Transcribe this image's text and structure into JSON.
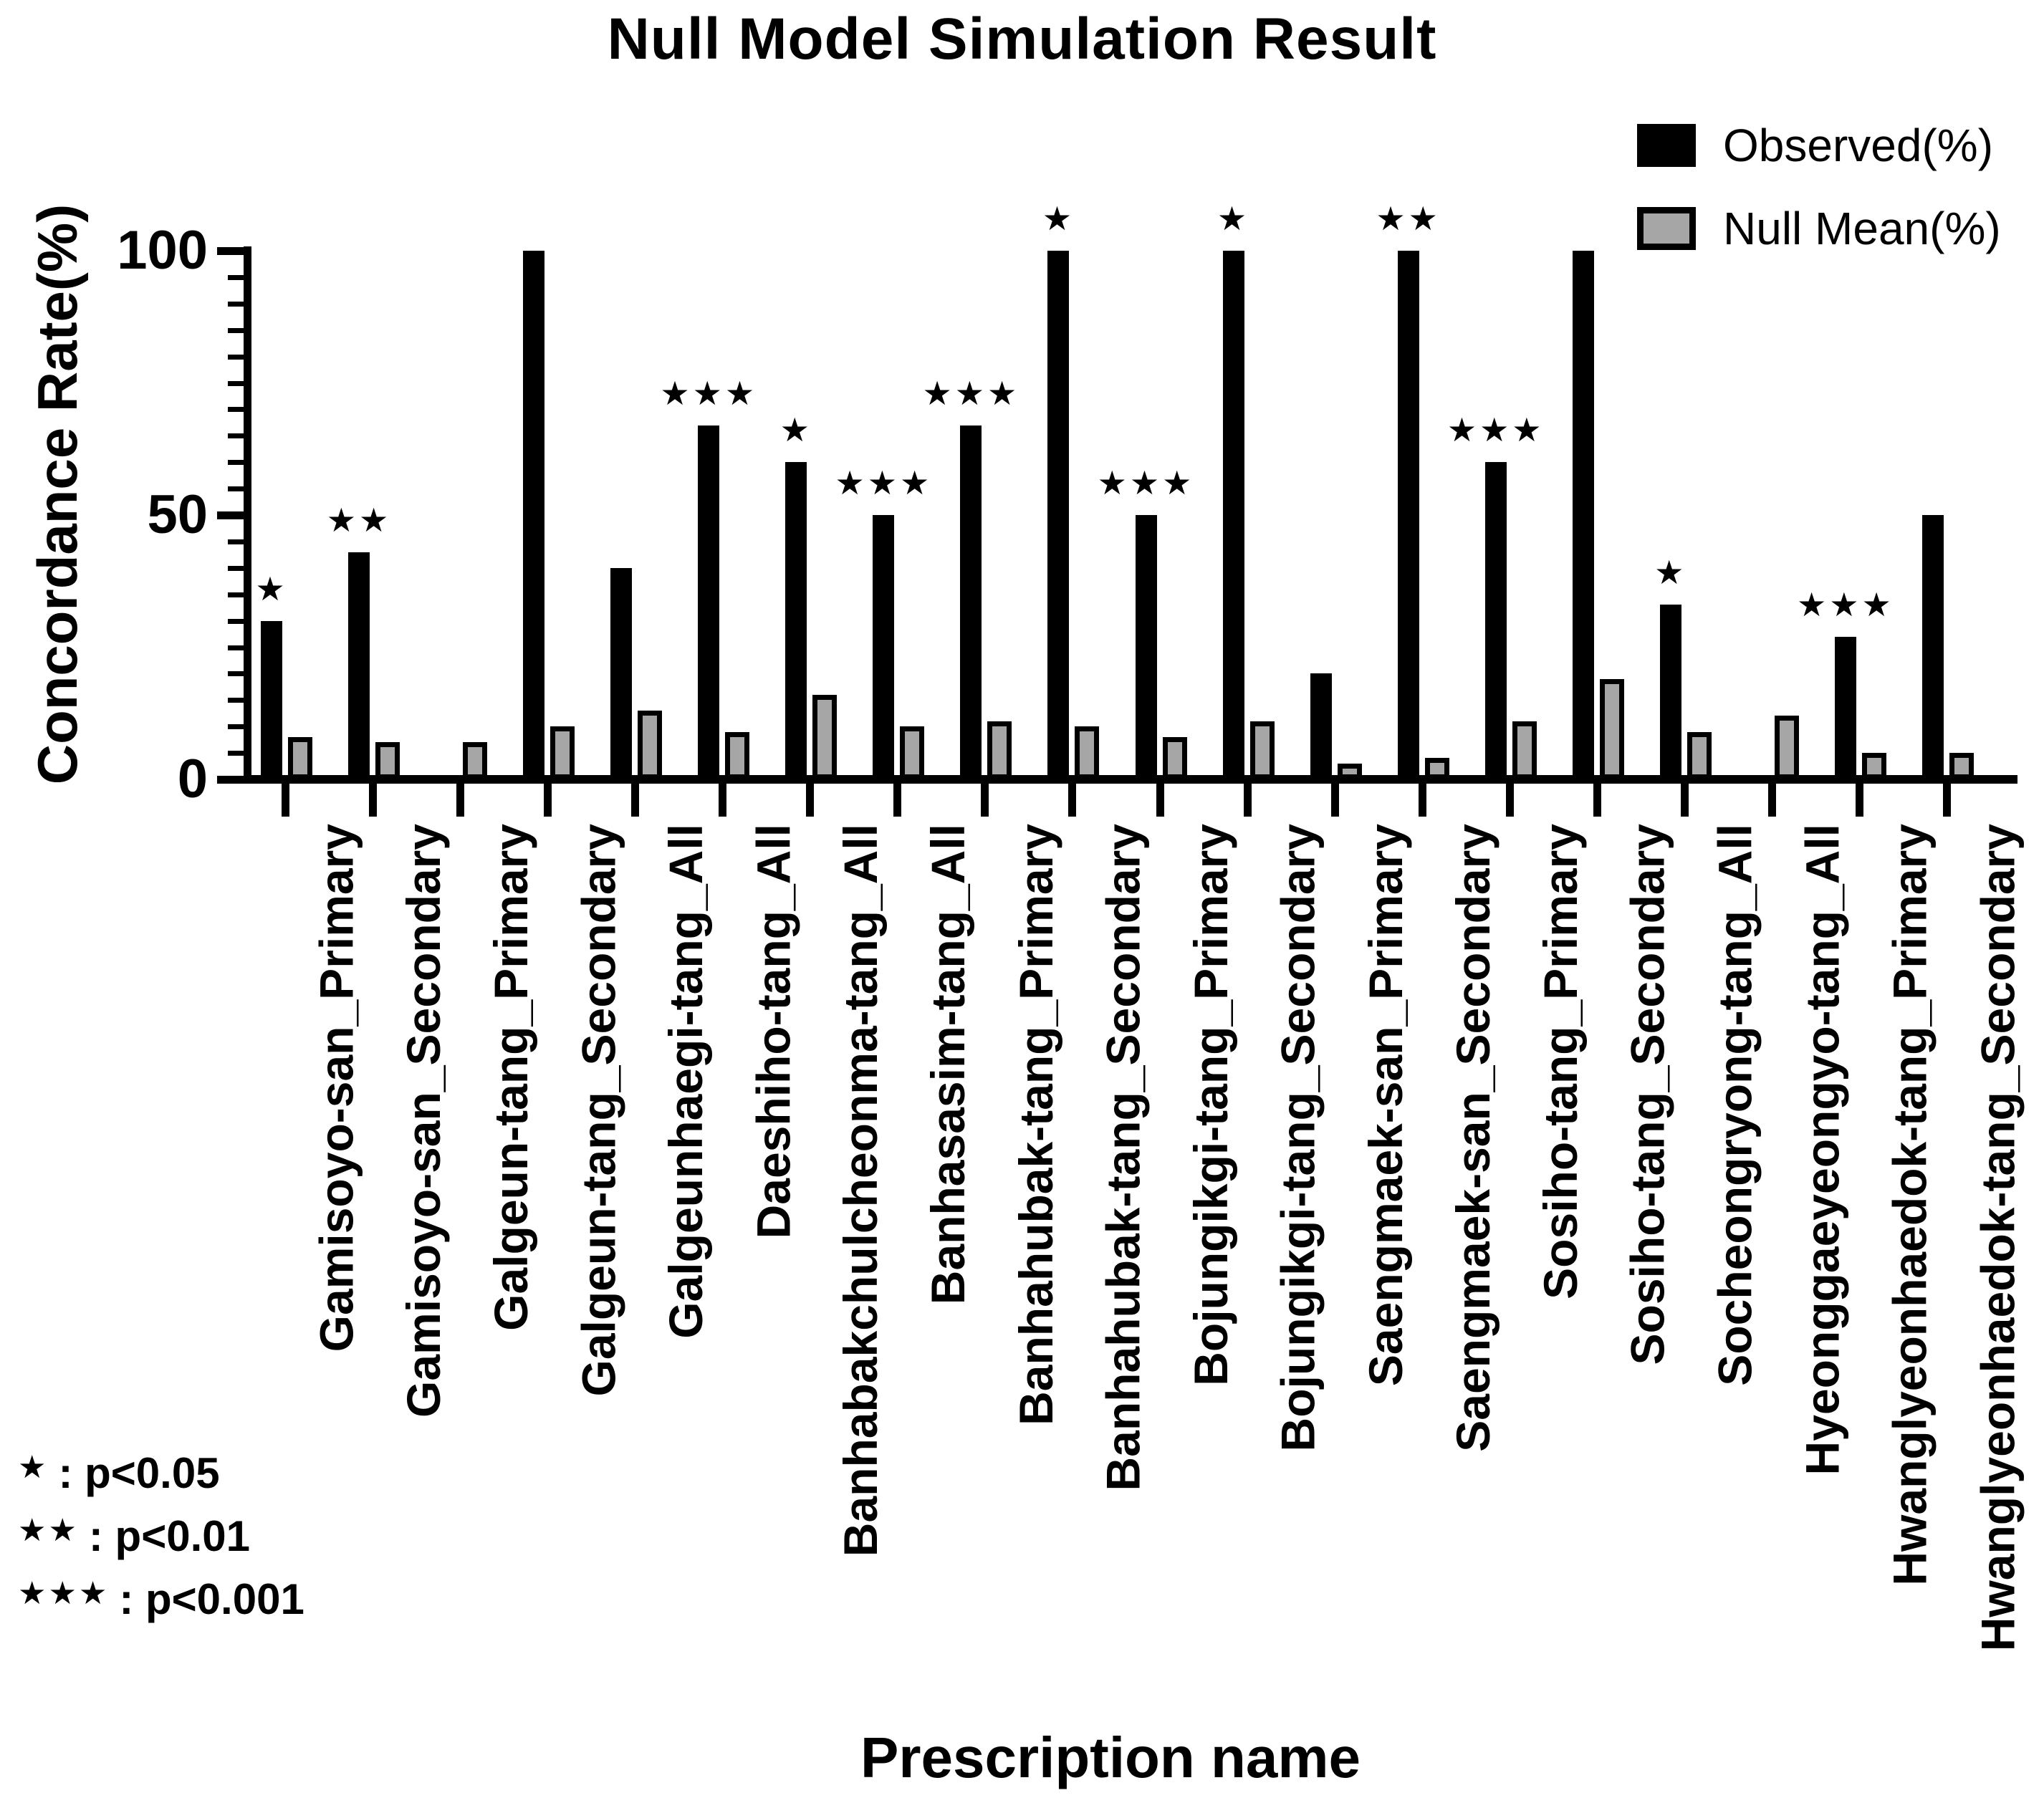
{
  "chart_data": {
    "type": "bar",
    "title": "Null Model Simulation Result",
    "xlabel": "Prescription name",
    "ylabel": "Concordance  Rate(%)",
    "ylim": [
      0,
      100
    ],
    "yticks": [
      0,
      50,
      100
    ],
    "y_minor_tick_step": 5,
    "grid": false,
    "legend_position": "top-right",
    "legend": [
      {
        "label": "Observed(%)",
        "color": "#000000"
      },
      {
        "label": "Null Mean(%)",
        "color": "#a6a6a6"
      }
    ],
    "categories": [
      "Gamisoyo-san_Primary",
      "Gamisoyo-san_Secondary",
      "Galgeun-tang_Primary",
      "Galgeun-tang_Secondary",
      "Galgeunhaegi-tang_All",
      "Daeshiho-tang_All",
      "Banhabakchulcheonma-tang_All",
      "Banhasasim-tang_All",
      "Banhahubak-tang_Primary",
      "Banhahubak-tang_Secondary",
      "Bojungikgi-tang_Primary",
      "Bojungikgi-tang_Secondary",
      "Saengmaek-san_Primary",
      "Saengmaek-san_Secondary",
      "Sosiho-tang_Primary",
      "Sosiho-tang_Secondary",
      "Socheongryong-tang_All",
      "Hyeonggaeyeongyo-tang_All",
      "Hwanglyeonhaedok-tang_Primary",
      "Hwanglyeonhaedok-tang_Secondary"
    ],
    "series": [
      {
        "name": "Observed(%)",
        "color": "#000000",
        "values": [
          30,
          43,
          0,
          100,
          40,
          67,
          60,
          50,
          67,
          100,
          50,
          100,
          20,
          100,
          60,
          100,
          33,
          0,
          27,
          50
        ]
      },
      {
        "name": "Null Mean(%)",
        "color": "#a6a6a6",
        "values": [
          8,
          7,
          7,
          10,
          13,
          9,
          16,
          10,
          11,
          10,
          8,
          11,
          3,
          4,
          11,
          19,
          9,
          12,
          5,
          5
        ]
      }
    ],
    "significance": [
      "*",
      "**",
      "",
      "",
      "",
      "***",
      "*",
      "***",
      "***",
      "*",
      "***",
      "*",
      "",
      "**",
      "***",
      "",
      "*",
      "",
      "***",
      ""
    ],
    "footnotes": [
      {
        "stars": "*",
        "label": ": p<0.05"
      },
      {
        "stars": "**",
        "label": ": p<0.01"
      },
      {
        "stars": "***",
        "label": ": p<0.001"
      }
    ]
  }
}
